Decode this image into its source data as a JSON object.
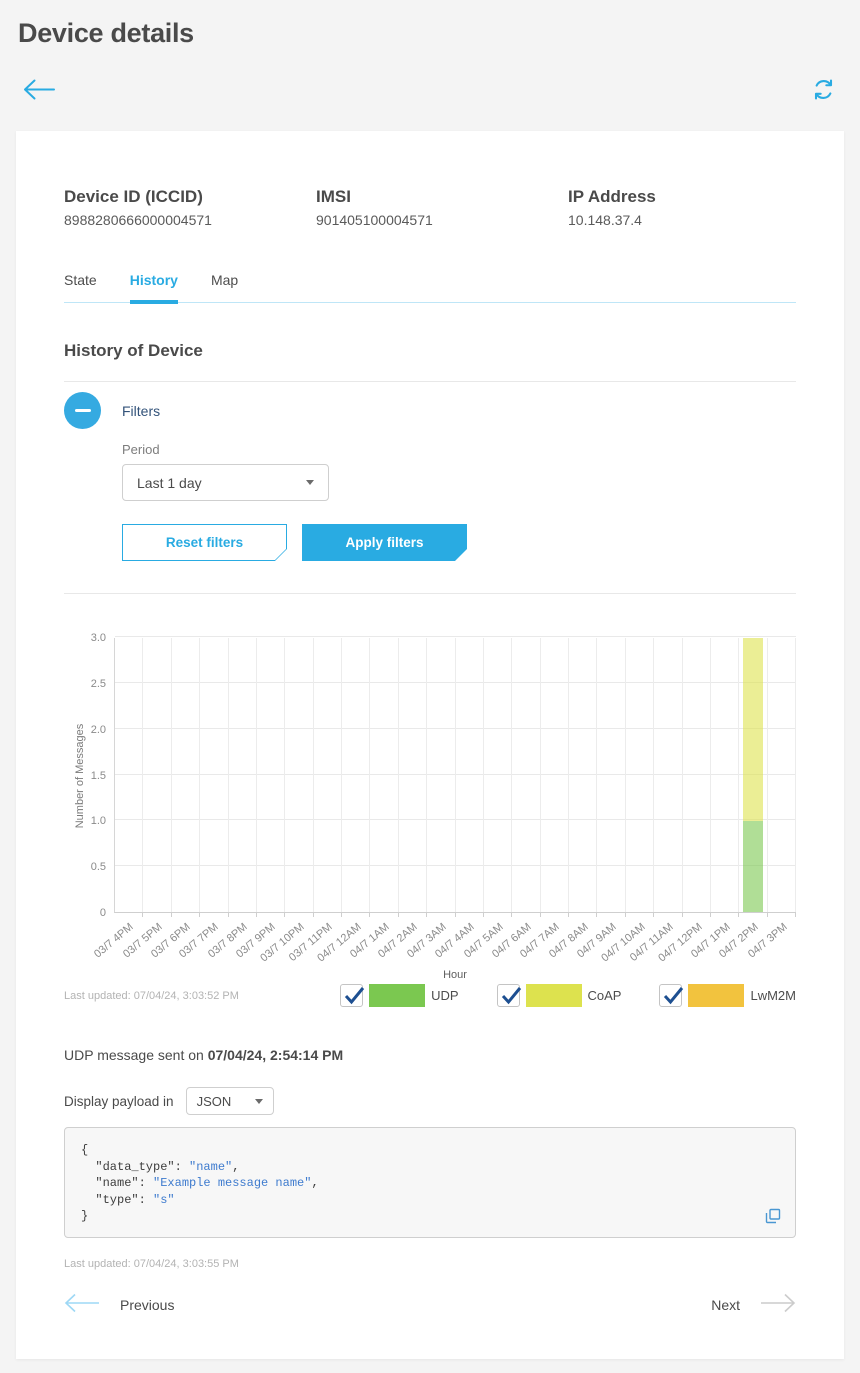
{
  "page": {
    "title": "Device details"
  },
  "header_icons": {
    "back": "back-arrow",
    "refresh": "refresh"
  },
  "device": {
    "fields": [
      {
        "label": "Device ID (ICCID)",
        "value": "8988280666000004571"
      },
      {
        "label": "IMSI",
        "value": "901405100004571"
      },
      {
        "label": "IP Address",
        "value": "10.148.37.4"
      }
    ]
  },
  "tabs": [
    {
      "label": "State",
      "active": false
    },
    {
      "label": "History",
      "active": true
    },
    {
      "label": "Map",
      "active": false
    }
  ],
  "history": {
    "heading": "History of Device",
    "filters": {
      "title": "Filters",
      "period_label": "Period",
      "period_value": "Last 1 day",
      "reset_label": "Reset filters",
      "apply_label": "Apply filters"
    },
    "last_updated": "Last updated: 07/04/24, 3:03:52 PM",
    "legend": [
      {
        "label": "UDP",
        "color": "#7bc850",
        "checked": true
      },
      {
        "label": "CoAP",
        "color": "#dde24e",
        "checked": true
      },
      {
        "label": "LwM2M",
        "color": "#f2c33e",
        "checked": true
      }
    ]
  },
  "chart_data": {
    "type": "bar",
    "stacked": true,
    "title": "",
    "xlabel": "Hour",
    "ylabel": "Number of Messages",
    "ylim": [
      0,
      3.0
    ],
    "yticks": [
      "0",
      "0.5",
      "1.0",
      "1.5",
      "2.0",
      "2.5",
      "3.0"
    ],
    "grid": true,
    "legend_position": "bottom-right",
    "categories": [
      "03/7 4PM",
      "03/7 5PM",
      "03/7 6PM",
      "03/7 7PM",
      "03/7 8PM",
      "03/7 9PM",
      "03/7 10PM",
      "03/7 11PM",
      "04/7 12AM",
      "04/7 1AM",
      "04/7 2AM",
      "04/7 3AM",
      "04/7 4AM",
      "04/7 5AM",
      "04/7 6AM",
      "04/7 7AM",
      "04/7 8AM",
      "04/7 9AM",
      "04/7 10AM",
      "04/7 11AM",
      "04/7 12PM",
      "04/7 1PM",
      "04/7 2PM",
      "04/7 3PM"
    ],
    "series": [
      {
        "name": "UDP",
        "color": "#7bc850",
        "values": [
          0,
          0,
          0,
          0,
          0,
          0,
          0,
          0,
          0,
          0,
          0,
          0,
          0,
          0,
          0,
          0,
          0,
          0,
          0,
          0,
          0,
          0,
          1,
          0
        ]
      },
      {
        "name": "CoAP",
        "color": "#dde24e",
        "values": [
          0,
          0,
          0,
          0,
          0,
          0,
          0,
          0,
          0,
          0,
          0,
          0,
          0,
          0,
          0,
          0,
          0,
          0,
          0,
          0,
          0,
          0,
          2,
          0
        ]
      },
      {
        "name": "LwM2M",
        "color": "#f2c33e",
        "values": [
          0,
          0,
          0,
          0,
          0,
          0,
          0,
          0,
          0,
          0,
          0,
          0,
          0,
          0,
          0,
          0,
          0,
          0,
          0,
          0,
          0,
          0,
          0,
          0
        ]
      }
    ]
  },
  "message": {
    "sent_prefix": "UDP message sent on ",
    "sent_time": "07/04/24, 2:54:14 PM",
    "payload_label": "Display payload in",
    "payload_format": "JSON",
    "payload_lines": [
      [
        {
          "text": "{",
          "style": "plain"
        }
      ],
      [
        {
          "text": "  \"data_type\": ",
          "style": "plain"
        },
        {
          "text": "\"name\"",
          "style": "value"
        },
        {
          "text": ",",
          "style": "plain"
        }
      ],
      [
        {
          "text": "  \"name\": ",
          "style": "plain"
        },
        {
          "text": "\"Example message name\"",
          "style": "value"
        },
        {
          "text": ",",
          "style": "plain"
        }
      ],
      [
        {
          "text": "  \"type\": ",
          "style": "plain"
        },
        {
          "text": "\"s\"",
          "style": "value"
        }
      ],
      [
        {
          "text": "}",
          "style": "plain"
        }
      ]
    ],
    "last_updated": "Last updated: 07/04/24, 3:03:55 PM"
  },
  "pagination": {
    "previous": "Previous",
    "next": "Next"
  },
  "colors": {
    "accent": "#29abe2",
    "filters_text": "#33537a",
    "check": "#1d4f91"
  }
}
